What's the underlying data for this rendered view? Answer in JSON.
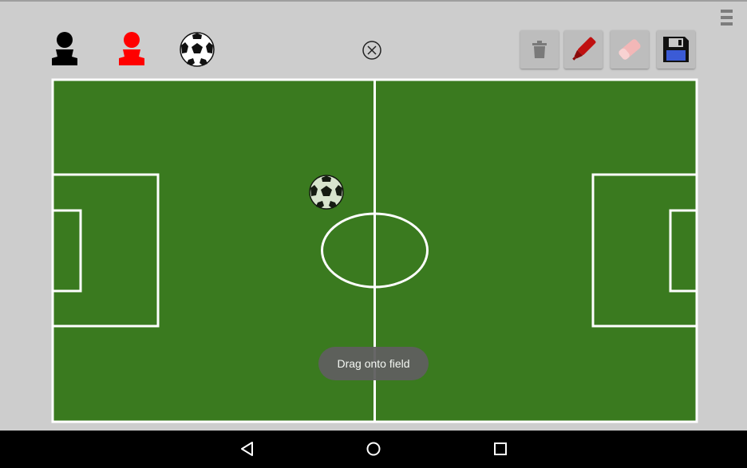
{
  "palette": {
    "items": [
      {
        "name": "black-player-icon",
        "color": "#000000"
      },
      {
        "name": "red-player-icon",
        "color": "#ff0000"
      },
      {
        "name": "ball-icon",
        "color": "#000000"
      }
    ]
  },
  "toolbar": {
    "buttons": [
      "trash-icon",
      "marker-icon",
      "eraser-icon",
      "save-icon"
    ]
  },
  "field": {
    "grass_color": "#3a7a1f",
    "line_color": "#ffffff"
  },
  "toast": {
    "text": "Drag onto field"
  },
  "navbar": {
    "buttons": [
      "back-icon",
      "home-icon",
      "recents-icon"
    ]
  }
}
